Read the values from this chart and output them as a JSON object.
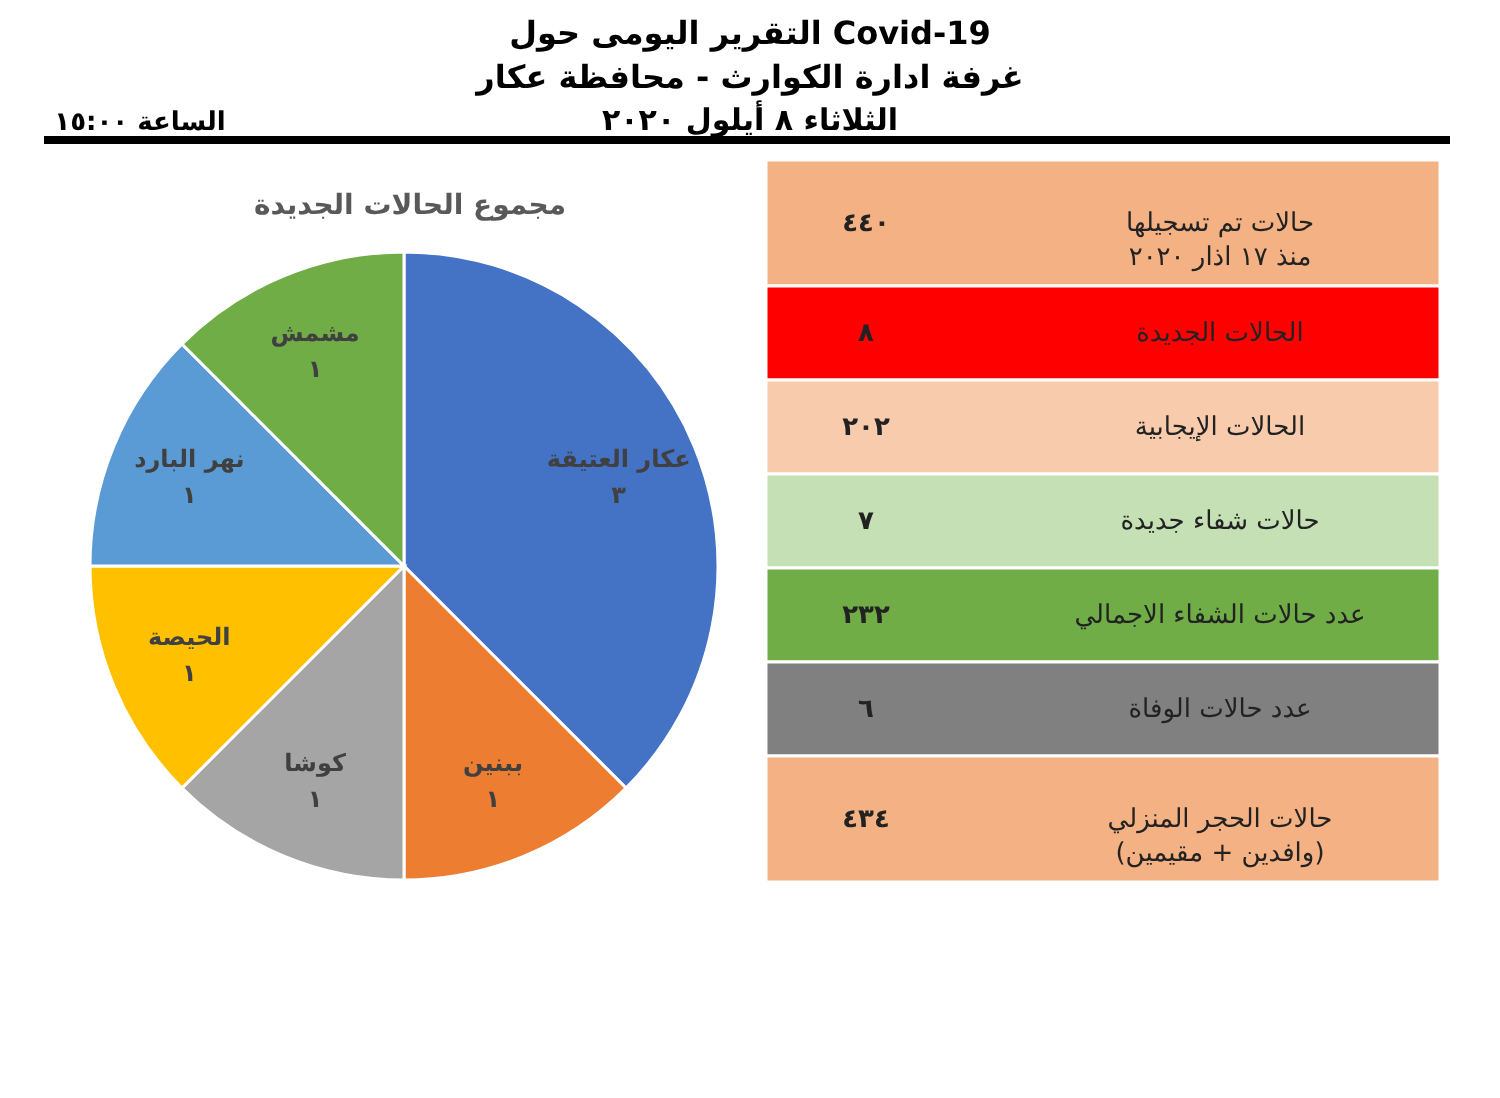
{
  "chart_data": [
    {
      "type": "other",
      "title": "التقرير اليومى حول Covid-19",
      "subtitle": "غرفة ادارة الكوارث - محافظة عكار",
      "annotations": [
        "الثلاثاء ٨ أيلول ٢٠٢٠",
        "الساعة ١٥:٠٠"
      ]
    },
    {
      "type": "pie",
      "title": "مجموع الحالات الجديدة",
      "categories": [
        "عكار العتيقة",
        "ببنين",
        "كوشا",
        "الحيصة",
        "نهر البارد",
        "مشمش"
      ],
      "values": [
        3,
        1,
        1,
        1,
        1,
        1
      ],
      "colors": [
        "#4472c4",
        "#ed7d31",
        "#a5a5a5",
        "#ffc000",
        "#5b9bd5",
        "#70ad47"
      ],
      "value_labels": [
        "٣",
        "١",
        "١",
        "١",
        "١",
        "١"
      ]
    },
    {
      "type": "other",
      "categories": [
        "حالات تم تسجيلها\nمنذ ١٧ اذار ٢٠٢٠",
        "الحالات الجديدة",
        "الحالات الإيجابية",
        "حالات شفاء جديدة",
        "عدد حالات الشفاء الاجمالي",
        "عدد حالات الوفاة",
        "حالات الحجر المنزلي\n(وافدين + مقيمين)"
      ],
      "value_labels": [
        "٤٤٠",
        "٨",
        "٢٠٢",
        "٧",
        "٢٣٢",
        "٦",
        "٤٣٤"
      ],
      "colors": [
        "#f4b183",
        "#ff0000",
        "#f8cbad",
        "#c5e0b4",
        "#70ad47",
        "#808080",
        "#f4b183"
      ]
    }
  ]
}
